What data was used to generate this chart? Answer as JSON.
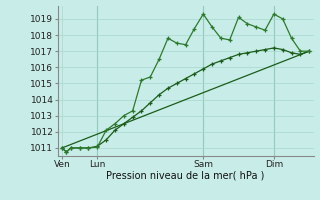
{
  "title": "",
  "xlabel": "Pression niveau de la mer( hPa )",
  "bg_color": "#c8ede8",
  "grid_color": "#a8d8cc",
  "line_color_dark": "#1a5c1a",
  "line_color_med": "#2d7a2d",
  "ylim": [
    1010.5,
    1019.8
  ],
  "xlim": [
    -3,
    171
  ],
  "xtick_labels": [
    "Ven",
    "Lun",
    "Sam",
    "Dim"
  ],
  "xtick_positions": [
    0,
    24,
    96,
    144
  ],
  "ytick_vals": [
    1011,
    1012,
    1013,
    1014,
    1015,
    1016,
    1017,
    1018,
    1019
  ],
  "series1_x": [
    0,
    3,
    6,
    12,
    18,
    24,
    30,
    36,
    42,
    48,
    54,
    60,
    66,
    72,
    78,
    84,
    90,
    96,
    102,
    108,
    114,
    120,
    126,
    132,
    138,
    144,
    150,
    156,
    162,
    168
  ],
  "series1_y": [
    1011.0,
    1010.75,
    1011.0,
    1011.0,
    1011.0,
    1011.05,
    1012.1,
    1012.5,
    1013.0,
    1013.3,
    1015.2,
    1015.4,
    1016.5,
    1017.8,
    1017.5,
    1017.4,
    1018.4,
    1019.3,
    1018.5,
    1017.8,
    1017.7,
    1019.1,
    1018.7,
    1018.5,
    1018.3,
    1019.3,
    1019.0,
    1017.8,
    1017.0,
    1017.0
  ],
  "series2_x": [
    0,
    3,
    6,
    12,
    18,
    24,
    30,
    36,
    42,
    48,
    54,
    60,
    66,
    72,
    78,
    84,
    90,
    96,
    102,
    108,
    114,
    120,
    126,
    132,
    138,
    144,
    150,
    156,
    162,
    168
  ],
  "series2_y": [
    1011.0,
    1010.75,
    1011.0,
    1011.0,
    1011.0,
    1011.1,
    1011.5,
    1012.1,
    1012.5,
    1012.9,
    1013.3,
    1013.8,
    1014.3,
    1014.7,
    1015.0,
    1015.3,
    1015.6,
    1015.9,
    1016.2,
    1016.4,
    1016.6,
    1016.8,
    1016.9,
    1017.0,
    1017.1,
    1017.2,
    1017.1,
    1016.9,
    1016.8,
    1017.0
  ],
  "series3_x": [
    0,
    168
  ],
  "series3_y": [
    1011.0,
    1017.0
  ],
  "vline_positions": [
    24,
    96,
    144
  ],
  "marker_size": 3.5
}
